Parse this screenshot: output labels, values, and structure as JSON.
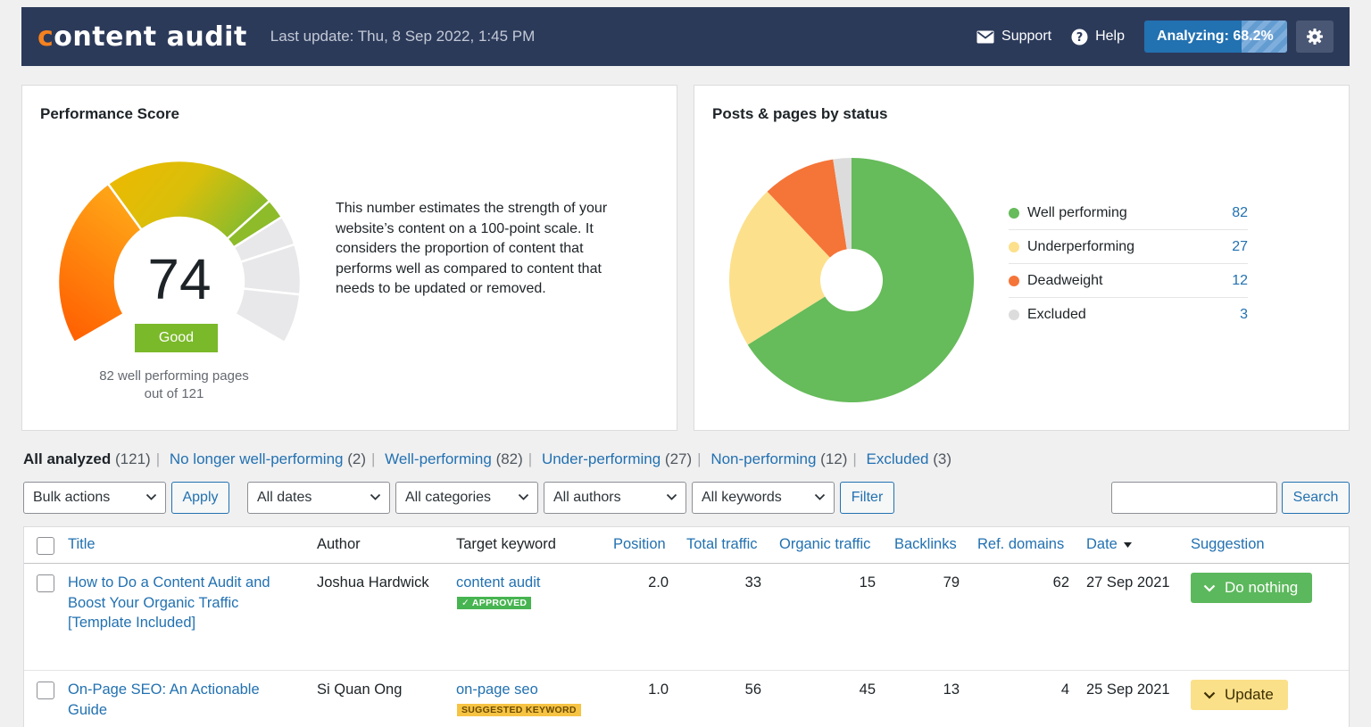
{
  "header": {
    "logo_prefix": "c",
    "logo_rest": "ontent audit",
    "last_update": "Last update: Thu, 8 Sep 2022, 1:45 PM",
    "support_label": "Support",
    "help_label": "Help",
    "analyzing_label": "Analyzing: 68.2%",
    "analyzing_progress": 68.2,
    "icons": [
      "envelope-icon",
      "help-icon",
      "gear-icon"
    ]
  },
  "performance": {
    "title": "Performance Score",
    "score": "74",
    "rating": "Good",
    "caption_line1": "82 well performing pages",
    "caption_line2": "out of 121",
    "description": "This number estimates the strength of your website’s content on a 100-point scale. It considers the proportion of content that performs well as compared to content that needs to be updated or removed."
  },
  "status": {
    "title": "Posts & pages by status",
    "items": [
      {
        "label": "Well performing",
        "count": "82",
        "value": 82,
        "color": "#66bb5a"
      },
      {
        "label": "Underperforming",
        "count": "27",
        "value": 27,
        "color": "#fce08c"
      },
      {
        "label": "Deadweight",
        "count": "12",
        "value": 12,
        "color": "#f57438"
      },
      {
        "label": "Excluded",
        "count": "3",
        "value": 3,
        "color": "#dcdcdc"
      }
    ]
  },
  "views": {
    "all": "All analyzed",
    "all_count": "(121)",
    "links": [
      {
        "label": "No longer well-performing",
        "count": "(2)"
      },
      {
        "label": "Well-performing",
        "count": "(82)"
      },
      {
        "label": "Under-performing",
        "count": "(27)"
      },
      {
        "label": "Non-performing",
        "count": "(12)"
      },
      {
        "label": "Excluded",
        "count": "(3)"
      }
    ]
  },
  "toolbar": {
    "bulk_actions": "Bulk actions",
    "apply": "Apply",
    "dates": "All dates",
    "categories": "All categories",
    "authors": "All authors",
    "keywords": "All keywords",
    "filter": "Filter",
    "search": "Search",
    "search_value": ""
  },
  "table": {
    "columns": {
      "title": "Title",
      "author": "Author",
      "keyword": "Target keyword",
      "position": "Position",
      "total_traffic": "Total traffic",
      "organic_traffic": "Organic traffic",
      "backlinks": "Backlinks",
      "ref_domains": "Ref. domains",
      "date": "Date",
      "suggestion": "Suggestion"
    },
    "rows": [
      {
        "title": "How to Do a Content Audit and Boost Your Organic Traffic [Template Included]",
        "author": "Joshua Hardwick",
        "keyword": "content audit",
        "keyword_tag": "✓ APPROVED",
        "position": "2.0",
        "total_traffic": "33",
        "organic_traffic": "15",
        "backlinks": "79",
        "ref_domains": "62",
        "date": "27 Sep 2021",
        "suggestion": "Do nothing"
      },
      {
        "title": "On-Page SEO: An Actionable Guide",
        "author": "Si Quan Ong",
        "keyword": "on-page seo",
        "keyword_tag": "SUGGESTED KEYWORD",
        "position": "1.0",
        "total_traffic": "56",
        "organic_traffic": "45",
        "backlinks": "13",
        "ref_domains": "4",
        "date": "25 Sep 2021",
        "suggestion": "Update"
      }
    ]
  }
}
